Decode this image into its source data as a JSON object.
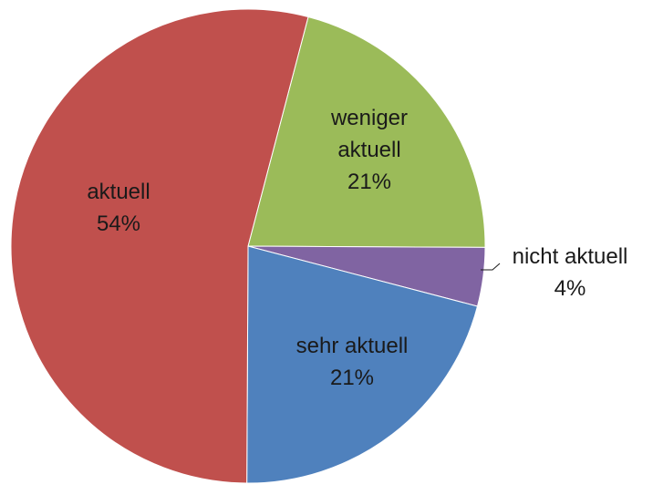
{
  "chart_data": {
    "type": "pie",
    "title": "",
    "slices": [
      {
        "label": "weniger aktuell",
        "label_lines": [
          "weniger",
          "aktuell"
        ],
        "value": 21,
        "value_label": "21%",
        "color": "#9BBB59"
      },
      {
        "label": "nicht aktuell",
        "label_lines": [
          "nicht aktuell"
        ],
        "value": 4,
        "value_label": "4%",
        "color": "#8064A2"
      },
      {
        "label": "sehr aktuell",
        "label_lines": [
          "sehr aktuell"
        ],
        "value": 21,
        "value_label": "21%",
        "color": "#4F81BD"
      },
      {
        "label": "aktuell",
        "label_lines": [
          "aktuell"
        ],
        "value": 54,
        "value_label": "54%",
        "color": "#C0504D"
      }
    ]
  }
}
